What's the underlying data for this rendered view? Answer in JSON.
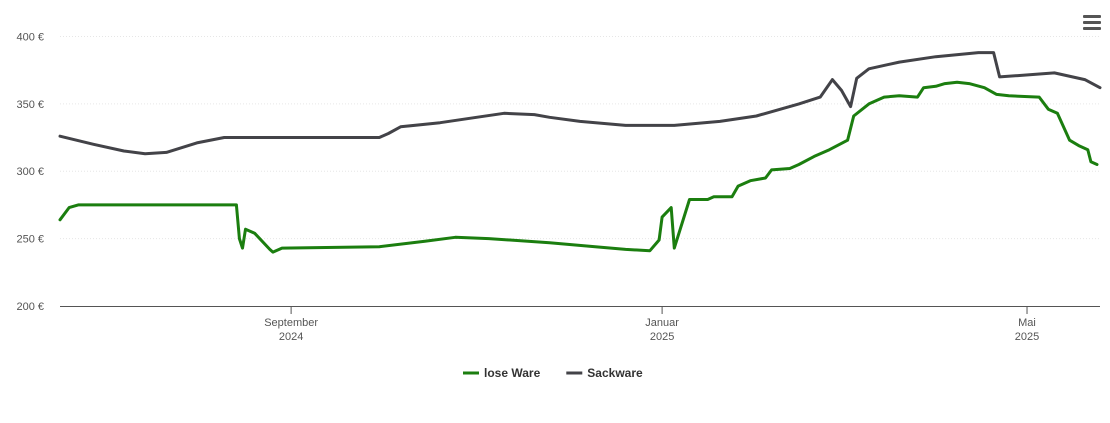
{
  "menu_icon": "hamburger-menu-icon",
  "chart_data": {
    "type": "line",
    "y_ticks": [
      "200 €",
      "250 €",
      "300 €",
      "350 €",
      "400 €"
    ],
    "y_values": [
      200,
      250,
      300,
      350,
      400
    ],
    "ylim": [
      200,
      410
    ],
    "xlim": [
      "2024-06-17",
      "2025-05-25"
    ],
    "x_ticks": [
      {
        "date": "2024-09-01",
        "month": "September",
        "year": "2024"
      },
      {
        "date": "2025-01-01",
        "month": "Januar",
        "year": "2025"
      },
      {
        "date": "2025-05-01",
        "month": "Mai",
        "year": "2025"
      }
    ],
    "grid": true,
    "legend_position": "bottom-center",
    "series": [
      {
        "name": "lose Ware",
        "color": "#1b7e0f",
        "points": [
          [
            "2024-06-17",
            264
          ],
          [
            "2024-06-20",
            273
          ],
          [
            "2024-06-23",
            275
          ],
          [
            "2024-08-10",
            275
          ],
          [
            "2024-08-14",
            275
          ],
          [
            "2024-08-15",
            250
          ],
          [
            "2024-08-16",
            243
          ],
          [
            "2024-08-17",
            257
          ],
          [
            "2024-08-20",
            254
          ],
          [
            "2024-08-25",
            242
          ],
          [
            "2024-08-26",
            240
          ],
          [
            "2024-08-29",
            243
          ],
          [
            "2024-09-30",
            244
          ],
          [
            "2024-10-15",
            248
          ],
          [
            "2024-10-25",
            251
          ],
          [
            "2024-11-05",
            250
          ],
          [
            "2024-11-25",
            247
          ],
          [
            "2024-12-10",
            244
          ],
          [
            "2024-12-20",
            242
          ],
          [
            "2024-12-28",
            241
          ],
          [
            "2025-01-05",
            243
          ],
          [
            "2024-12-31",
            249
          ],
          [
            "2025-01-01",
            266
          ],
          [
            "2025-01-04",
            273
          ],
          [
            "2025-01-10",
            279
          ],
          [
            "2025-01-16",
            279
          ],
          [
            "2025-01-18",
            281
          ],
          [
            "2025-01-24",
            281
          ],
          [
            "2025-01-26",
            289
          ],
          [
            "2025-01-30",
            293
          ],
          [
            "2025-02-04",
            295
          ],
          [
            "2025-02-06",
            301
          ],
          [
            "2025-02-12",
            302
          ],
          [
            "2025-02-15",
            305
          ],
          [
            "2025-02-20",
            311
          ],
          [
            "2025-02-25",
            316
          ],
          [
            "2025-03-03",
            323
          ],
          [
            "2025-03-05",
            341
          ],
          [
            "2025-03-10",
            350
          ],
          [
            "2025-03-15",
            355
          ],
          [
            "2025-03-20",
            356
          ],
          [
            "2025-03-26",
            355
          ],
          [
            "2025-03-28",
            362
          ],
          [
            "2025-04-01",
            363
          ],
          [
            "2025-04-04",
            365
          ],
          [
            "2025-04-08",
            366
          ],
          [
            "2025-04-12",
            365
          ],
          [
            "2025-04-17",
            362
          ],
          [
            "2025-04-21",
            357
          ],
          [
            "2025-04-25",
            356
          ],
          [
            "2025-05-05",
            355
          ],
          [
            "2025-05-08",
            346
          ],
          [
            "2025-05-11",
            343
          ],
          [
            "2025-05-15",
            323
          ],
          [
            "2025-05-18",
            319
          ],
          [
            "2025-05-21",
            316
          ],
          [
            "2025-05-22",
            307
          ],
          [
            "2025-05-24",
            305
          ]
        ]
      },
      {
        "name": "Sackware",
        "color": "#434348",
        "points": [
          [
            "2024-06-17",
            326
          ],
          [
            "2024-06-28",
            320
          ],
          [
            "2024-07-08",
            315
          ],
          [
            "2024-07-15",
            313
          ],
          [
            "2024-07-22",
            314
          ],
          [
            "2024-08-01",
            321
          ],
          [
            "2024-08-10",
            325
          ],
          [
            "2024-09-30",
            325
          ],
          [
            "2024-10-03",
            328
          ],
          [
            "2024-10-07",
            333
          ],
          [
            "2024-10-20",
            336
          ],
          [
            "2024-11-01",
            340
          ],
          [
            "2024-11-10",
            343
          ],
          [
            "2024-11-20",
            342
          ],
          [
            "2024-11-25",
            340
          ],
          [
            "2024-12-05",
            337
          ],
          [
            "2024-12-20",
            334
          ],
          [
            "2025-01-05",
            334
          ],
          [
            "2025-01-20",
            337
          ],
          [
            "2025-02-01",
            341
          ],
          [
            "2025-02-15",
            350
          ],
          [
            "2025-02-22",
            355
          ],
          [
            "2025-02-26",
            368
          ],
          [
            "2025-03-01",
            360
          ],
          [
            "2025-03-04",
            348
          ],
          [
            "2025-03-06",
            369
          ],
          [
            "2025-03-10",
            376
          ],
          [
            "2025-03-20",
            381
          ],
          [
            "2025-04-01",
            385
          ],
          [
            "2025-04-15",
            388
          ],
          [
            "2025-04-20",
            388
          ],
          [
            "2025-04-22",
            370
          ],
          [
            "2025-04-28",
            371
          ],
          [
            "2025-05-10",
            373
          ],
          [
            "2025-05-20",
            368
          ],
          [
            "2025-05-25",
            362
          ]
        ]
      }
    ]
  }
}
